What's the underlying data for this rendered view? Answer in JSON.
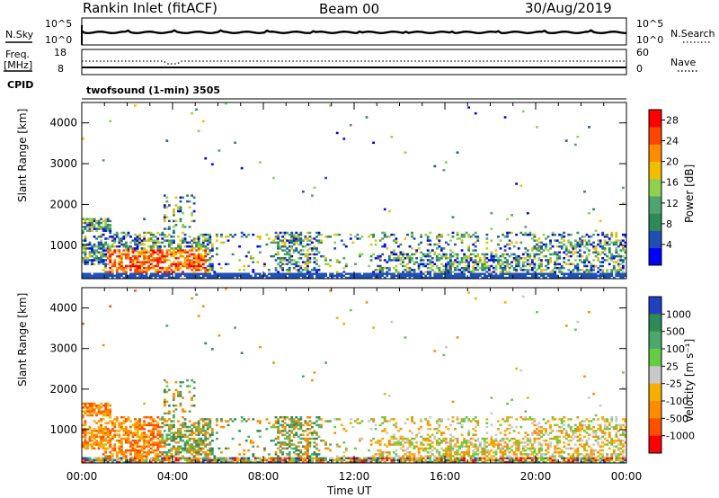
{
  "header": {
    "station": "Rankin Inlet (fitACF)",
    "beam": "Beam 00",
    "date": "30/Aug/2019"
  },
  "top_panels": {
    "nsky_label": "N.Sky",
    "nsearch_label": "N.Search",
    "noise_ticks": [
      "10^5",
      "10^0"
    ],
    "freq_label_top": "Freq.",
    "freq_label_bottom": "[MHz]",
    "freq_ticks": [
      "18",
      "8"
    ],
    "nave_label": "Nave",
    "nave_ticks": [
      "60",
      "0"
    ],
    "cpid_label": "CPID",
    "cpid_text": "twofsound (1-min) 3505"
  },
  "chart_data": [
    {
      "type": "heatmap",
      "name": "Power",
      "xlabel": "",
      "ylabel": "Slant Range [km]",
      "x_range": [
        "00:00",
        "24:00"
      ],
      "ylim": [
        180,
        4500
      ],
      "y_ticks": [
        1000,
        2000,
        3000,
        4000
      ],
      "colorbar_label": "Power [dB]",
      "colorbar_ticks": [
        4,
        8,
        12,
        16,
        20,
        24,
        28
      ],
      "colorbar_range": [
        0,
        30
      ],
      "colors": [
        "#0000ff",
        "#1f4fb4",
        "#2e8b57",
        "#4fa46e",
        "#8fd14f",
        "#f0c000",
        "#ff8c00",
        "#ff4500",
        "#ff0000"
      ]
    },
    {
      "type": "heatmap",
      "name": "Velocity",
      "xlabel": "Time UT",
      "ylabel": "Slant Range [km]",
      "x_range": [
        "00:00",
        "24:00"
      ],
      "x_ticks": [
        "00:00",
        "04:00",
        "08:00",
        "12:00",
        "16:00",
        "20:00",
        "00:00"
      ],
      "ylim": [
        180,
        4500
      ],
      "y_ticks": [
        1000,
        2000,
        3000,
        4000
      ],
      "colorbar_label": "Velocity [m s⁻¹]",
      "colorbar_ticks": [
        "1000",
        "500",
        "100",
        "25",
        "-25",
        "-100",
        "-500",
        "-1000"
      ],
      "colors": [
        "#2040c0",
        "#2e8b57",
        "#4aa86a",
        "#66cc44",
        "#c8c8c8",
        "#f5b000",
        "#ff8c00",
        "#ff5000",
        "#ff0000"
      ]
    }
  ]
}
